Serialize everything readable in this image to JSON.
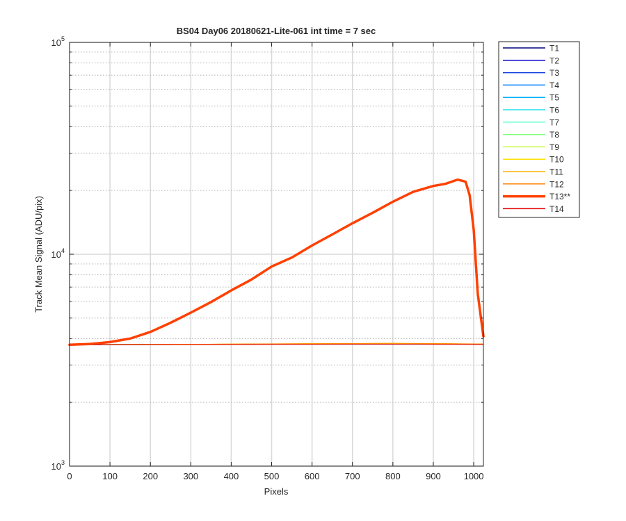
{
  "chart_data": {
    "type": "line",
    "title": "BS04 Day06 20180621-Lite-061 int time = 7 sec",
    "xlabel": "Pixels",
    "ylabel": "Track Mean Signal (ADU/pix)",
    "xlim": [
      0,
      1024
    ],
    "ylim": [
      1000,
      100000
    ],
    "yscale": "log",
    "x_ticks": [
      0,
      100,
      200,
      300,
      400,
      500,
      600,
      700,
      800,
      900,
      1000
    ],
    "y_ticks": [
      {
        "base": "10",
        "exp": "3",
        "value": 1000
      },
      {
        "base": "10",
        "exp": "4",
        "value": 10000
      },
      {
        "base": "10",
        "exp": "5",
        "value": 100000
      }
    ],
    "grid": true,
    "legend_position": "outside-right",
    "series": [
      {
        "name": "T1",
        "color": "#00007f",
        "width": 1,
        "x": [
          0,
          300,
          600,
          800,
          1024
        ],
        "y": [
          3740,
          3750,
          3770,
          3780,
          3760
        ]
      },
      {
        "name": "T2",
        "color": "#0000c8",
        "width": 1,
        "x": [
          0,
          300,
          600,
          800,
          1024
        ],
        "y": [
          3740,
          3750,
          3770,
          3780,
          3760
        ]
      },
      {
        "name": "T3",
        "color": "#0a3ce0",
        "width": 1,
        "x": [
          0,
          300,
          600,
          800,
          1024
        ],
        "y": [
          3740,
          3752,
          3772,
          3782,
          3762
        ]
      },
      {
        "name": "T4",
        "color": "#0080ff",
        "width": 1,
        "x": [
          0,
          300,
          600,
          800,
          1024
        ],
        "y": [
          3742,
          3752,
          3772,
          3782,
          3762
        ]
      },
      {
        "name": "T5",
        "color": "#00b0ff",
        "width": 1,
        "x": [
          0,
          300,
          600,
          800,
          1024
        ],
        "y": [
          3742,
          3754,
          3774,
          3784,
          3764
        ]
      },
      {
        "name": "T6",
        "color": "#20e0f0",
        "width": 1,
        "x": [
          0,
          300,
          600,
          800,
          1024
        ],
        "y": [
          3742,
          3754,
          3774,
          3786,
          3764
        ]
      },
      {
        "name": "T7",
        "color": "#60ffd0",
        "width": 1,
        "x": [
          0,
          300,
          600,
          800,
          1024
        ],
        "y": [
          3744,
          3756,
          3776,
          3788,
          3766
        ]
      },
      {
        "name": "T8",
        "color": "#80ff80",
        "width": 1,
        "x": [
          0,
          300,
          600,
          800,
          1024
        ],
        "y": [
          3744,
          3756,
          3778,
          3790,
          3766
        ]
      },
      {
        "name": "T9",
        "color": "#c8ff40",
        "width": 1,
        "x": [
          0,
          300,
          600,
          800,
          1024
        ],
        "y": [
          3744,
          3758,
          3780,
          3792,
          3768
        ]
      },
      {
        "name": "T10",
        "color": "#ffe000",
        "width": 1,
        "x": [
          0,
          300,
          600,
          800,
          1024
        ],
        "y": [
          3746,
          3758,
          3782,
          3796,
          3770
        ]
      },
      {
        "name": "T11",
        "color": "#ffb000",
        "width": 1,
        "x": [
          0,
          300,
          600,
          800,
          1024
        ],
        "y": [
          3746,
          3760,
          3784,
          3798,
          3770
        ]
      },
      {
        "name": "T12",
        "color": "#ff8000",
        "width": 1,
        "x": [
          0,
          300,
          600,
          800,
          1024
        ],
        "y": [
          3746,
          3760,
          3784,
          3800,
          3772
        ]
      },
      {
        "name": "T13**",
        "color": "#ff4000",
        "width": 3.5,
        "x": [
          0,
          50,
          100,
          150,
          200,
          250,
          300,
          350,
          400,
          450,
          500,
          550,
          600,
          650,
          700,
          750,
          800,
          850,
          900,
          930,
          960,
          980,
          990,
          1000,
          1010,
          1024
        ],
        "y": [
          3740,
          3770,
          3850,
          4000,
          4300,
          4750,
          5300,
          5950,
          6750,
          7600,
          8750,
          9650,
          11000,
          12400,
          14000,
          15700,
          17700,
          19700,
          21000,
          21500,
          22500,
          22000,
          19000,
          13000,
          6500,
          4100
        ]
      },
      {
        "name": "T14",
        "color": "#e00000",
        "width": 1,
        "x": [
          0,
          300,
          600,
          800,
          1024
        ],
        "y": [
          3740,
          3745,
          3755,
          3760,
          3750
        ]
      }
    ]
  }
}
